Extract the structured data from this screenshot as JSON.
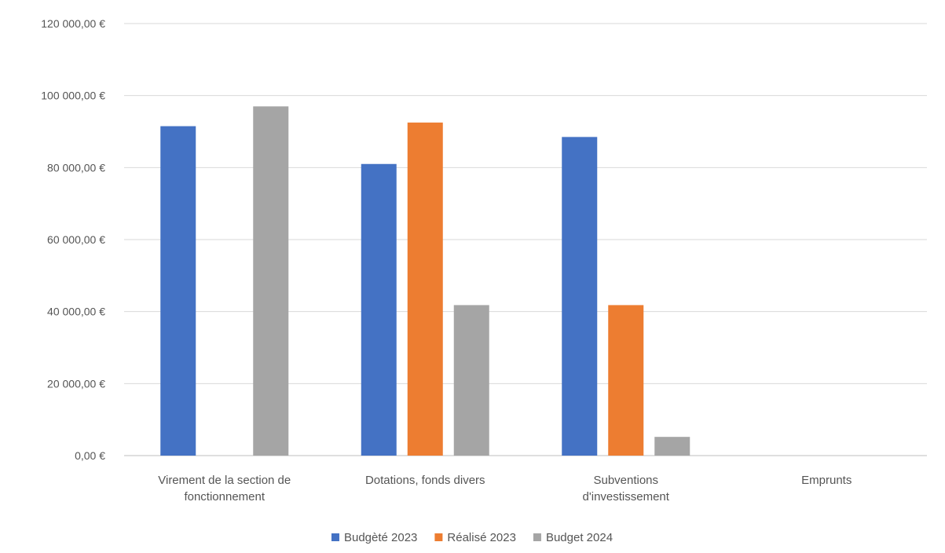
{
  "chart_data": {
    "type": "bar",
    "categories": [
      [
        "Virement de la section de",
        "fonctionnement"
      ],
      [
        "Dotations, fonds divers"
      ],
      [
        "Subventions",
        "d'investissement"
      ],
      [
        "Emprunts"
      ]
    ],
    "series": [
      {
        "name": "Budgèté 2023",
        "color": "#4472c4",
        "values": [
          91500,
          81000,
          88500,
          0
        ]
      },
      {
        "name": "Réalisé 2023",
        "color": "#ed7d31",
        "values": [
          0,
          92500,
          41800,
          0
        ]
      },
      {
        "name": "Budget 2024",
        "color": "#a5a5a5",
        "values": [
          97000,
          41800,
          5200,
          0
        ]
      }
    ],
    "ylim": [
      0,
      120000
    ],
    "yticks": [
      0,
      20000,
      40000,
      60000,
      80000,
      100000,
      120000
    ],
    "ytick_labels": [
      "0,00 €",
      "20 000,00 €",
      "40 000,00 €",
      "60 000,00 €",
      "80 000,00 €",
      "100 000,00 €",
      "120 000,00 €"
    ],
    "grid": true,
    "legend": "bottom"
  }
}
